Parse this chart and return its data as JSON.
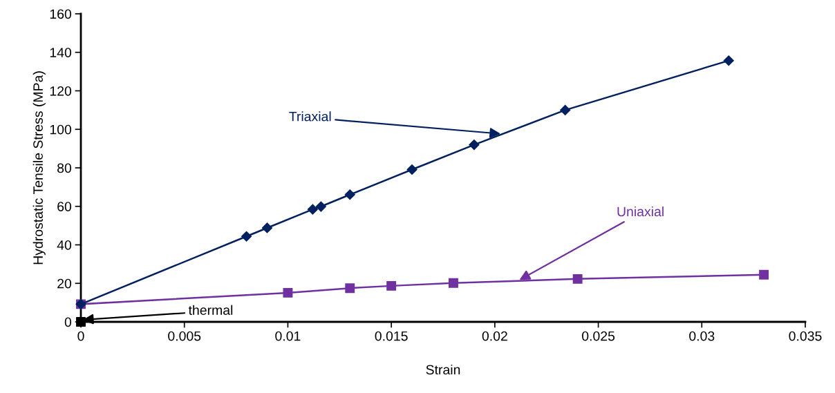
{
  "chart_data": {
    "type": "line",
    "xlabel": "Strain",
    "ylabel": "Hydrostatic Tensile Stress (MPa)",
    "xlim": [
      0,
      0.035
    ],
    "ylim": [
      0,
      160
    ],
    "xticks": [
      0,
      0.005,
      0.01,
      0.015,
      0.02,
      0.025,
      0.03,
      0.035
    ],
    "yticks": [
      0,
      20,
      40,
      60,
      80,
      100,
      120,
      140,
      160
    ],
    "grid": false,
    "legend": false,
    "series": [
      {
        "name": "Triaxial",
        "color": "#002060",
        "marker": "diamond",
        "x": [
          0,
          0.008,
          0.009,
          0.0112,
          0.0116,
          0.013,
          0.016,
          0.019,
          0.0234,
          0.0313
        ],
        "values": [
          9.2,
          44.4,
          48.8,
          58.4,
          59.9,
          66.1,
          79.1,
          92,
          110,
          135.7
        ]
      },
      {
        "name": "Uniaxial",
        "color": "#7030a0",
        "marker": "square",
        "x": [
          0,
          0.01,
          0.013,
          0.015,
          0.018,
          0.024,
          0.033
        ],
        "values": [
          9.2,
          15.1,
          17.5,
          18.7,
          20.2,
          22.3,
          24.5
        ]
      },
      {
        "name": "thermal",
        "type": "scatter",
        "color": "#000000",
        "marker": "square",
        "x": [
          0
        ],
        "values": [
          0
        ]
      }
    ]
  }
}
